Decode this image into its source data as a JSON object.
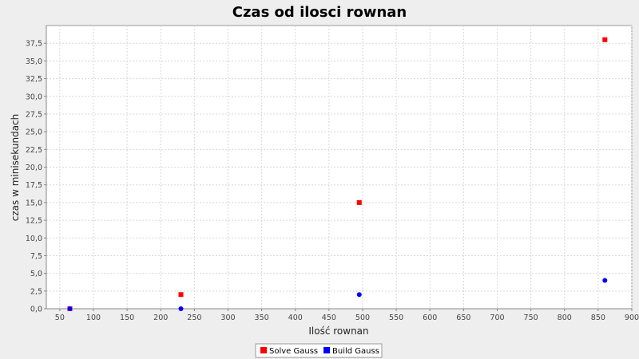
{
  "chart_data": {
    "type": "scatter",
    "title": "Czas od ilosci rownan",
    "xlabel": "Ilość rownan",
    "ylabel": "czas w minisekundach",
    "xlim": [
      30,
      900
    ],
    "ylim": [
      0,
      40
    ],
    "x_ticks": [
      50,
      100,
      150,
      200,
      250,
      300,
      350,
      400,
      450,
      500,
      550,
      600,
      650,
      700,
      750,
      800,
      850,
      900
    ],
    "x_tick_labels": [
      "50",
      "100",
      "150",
      "200",
      "250",
      "300",
      "350",
      "400",
      "450",
      "500",
      "550",
      "600",
      "650",
      "700",
      "750",
      "800",
      "850",
      "900"
    ],
    "y_ticks": [
      0,
      2.5,
      5,
      7.5,
      10,
      12.5,
      15,
      17.5,
      20,
      22.5,
      25,
      27.5,
      30,
      32.5,
      35,
      37.5
    ],
    "y_tick_labels": [
      "0,0",
      "2,5",
      "5,0",
      "7,5",
      "10,0",
      "12,5",
      "15,0",
      "17,5",
      "20,0",
      "22,5",
      "25,0",
      "27,5",
      "30,0",
      "32,5",
      "35,0",
      "37,5"
    ],
    "grid": true,
    "legend_position": "bottom",
    "series": [
      {
        "name": "Solve Gauss",
        "color": "#ff0000",
        "marker": "square",
        "points": [
          {
            "x": 65,
            "y": 0
          },
          {
            "x": 230,
            "y": 2
          },
          {
            "x": 495,
            "y": 15
          },
          {
            "x": 860,
            "y": 38
          }
        ]
      },
      {
        "name": "Build Gauss",
        "color": "#0000ff",
        "marker": "circle",
        "points": [
          {
            "x": 65,
            "y": 0
          },
          {
            "x": 230,
            "y": 0
          },
          {
            "x": 495,
            "y": 2
          },
          {
            "x": 860,
            "y": 4
          }
        ]
      }
    ]
  },
  "colors": {
    "background": "#eeeeee",
    "plot_background": "#ffffff",
    "gridline": "#d8d8d8"
  }
}
